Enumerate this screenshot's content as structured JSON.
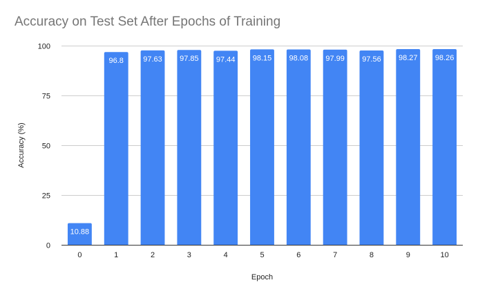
{
  "chart_data": {
    "type": "bar",
    "title": "Accuracy on Test Set After Epochs of Training",
    "xlabel": "Epoch",
    "ylabel": "Accuracy (%)",
    "categories": [
      "0",
      "1",
      "2",
      "3",
      "4",
      "5",
      "6",
      "7",
      "8",
      "9",
      "10"
    ],
    "values": [
      10.88,
      96.8,
      97.63,
      97.85,
      97.44,
      98.15,
      98.08,
      97.99,
      97.56,
      98.27,
      98.26
    ],
    "data_labels": [
      "10.88",
      "96.8",
      "97.63",
      "97.85",
      "97.44",
      "98.15",
      "98.08",
      "97.99",
      "97.56",
      "98.27",
      "98.26"
    ],
    "ylim": [
      0,
      100
    ],
    "yticks": [
      0,
      25,
      50,
      75,
      100
    ],
    "grid": true,
    "legend": "none",
    "colors": {
      "bar": "#4285f4",
      "grid": "#cccccc",
      "axis": "#333333",
      "title": "#757575",
      "text": "#222222",
      "data_label": "#ffffff"
    }
  }
}
